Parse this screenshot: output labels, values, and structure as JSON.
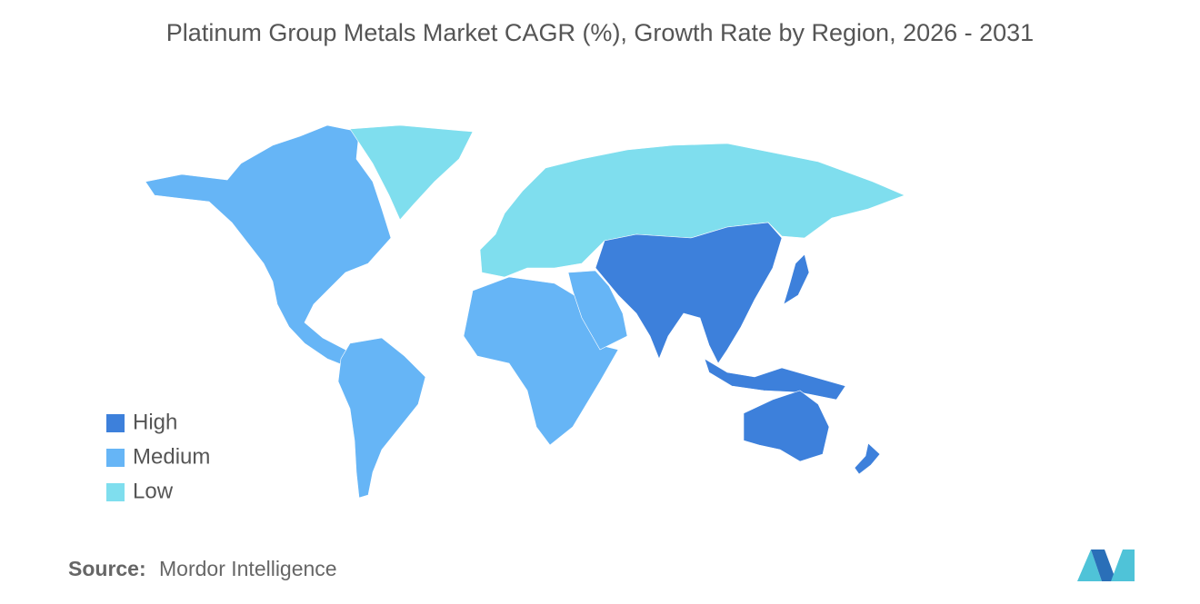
{
  "title": "Platinum Group Metals Market CAGR (%), Growth Rate by Region, 2026 - 2031",
  "legend": [
    {
      "label": "High",
      "color": "#3d80db"
    },
    {
      "label": "Medium",
      "color": "#66b5f6"
    },
    {
      "label": "Low",
      "color": "#7fdeee"
    }
  ],
  "source": {
    "key": "Source:",
    "value": "Mordor Intelligence"
  }
}
